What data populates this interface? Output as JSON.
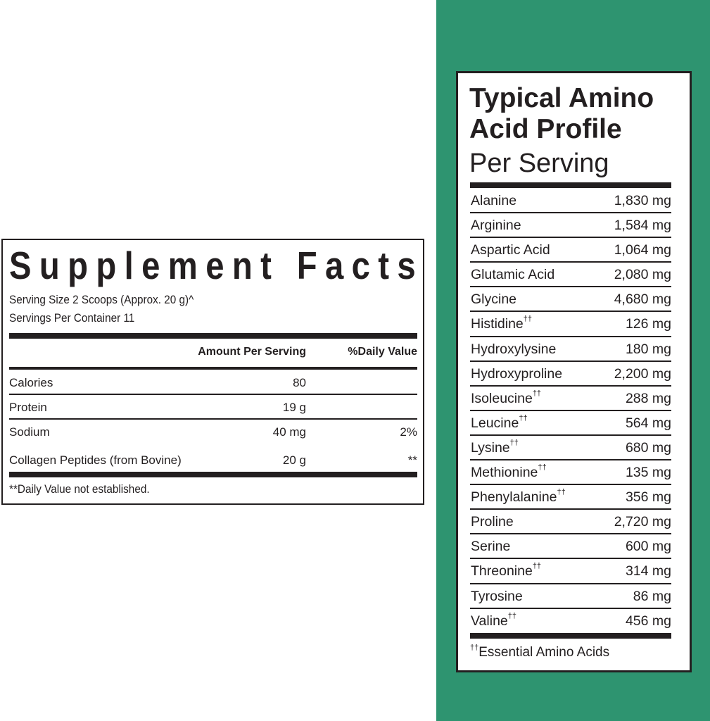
{
  "colors": {
    "background_accent": "#2e9470",
    "text": "#231f20"
  },
  "supplement_facts": {
    "title": "Supplement Facts",
    "serving_size": "Serving Size 2 Scoops (Approx. 20 g)^",
    "servings_per_container": "Servings Per Container 11",
    "headers": {
      "amount": "Amount Per Serving",
      "daily_value": "%Daily Value"
    },
    "rows": [
      {
        "name": "Calories",
        "amount": "80",
        "dv": ""
      },
      {
        "name": "Protein",
        "amount": "19 g",
        "dv": ""
      },
      {
        "name": "Sodium",
        "amount": "40 mg",
        "dv": "2%"
      },
      {
        "name": "Collagen Peptides (from Bovine)",
        "amount": "20 g",
        "dv": "**"
      }
    ],
    "footnote": "**Daily Value not established."
  },
  "amino_profile": {
    "title_line1": "Typical Amino",
    "title_line2": "Acid Profile",
    "subtitle": "Per Serving",
    "essential_mark": "††",
    "rows": [
      {
        "name": "Alanine",
        "value": "1,830 mg",
        "essential": false
      },
      {
        "name": "Arginine",
        "value": "1,584 mg",
        "essential": false
      },
      {
        "name": "Aspartic Acid",
        "value": "1,064 mg",
        "essential": false
      },
      {
        "name": "Glutamic Acid",
        "value": "2,080 mg",
        "essential": false
      },
      {
        "name": "Glycine",
        "value": "4,680 mg",
        "essential": false
      },
      {
        "name": "Histidine",
        "value": "126 mg",
        "essential": true
      },
      {
        "name": "Hydroxylysine",
        "value": "180 mg",
        "essential": false
      },
      {
        "name": "Hydroxyproline",
        "value": "2,200 mg",
        "essential": false
      },
      {
        "name": "Isoleucine",
        "value": "288 mg",
        "essential": true
      },
      {
        "name": "Leucine",
        "value": "564 mg",
        "essential": true
      },
      {
        "name": "Lysine",
        "value": "680 mg",
        "essential": true
      },
      {
        "name": "Methionine",
        "value": "135 mg",
        "essential": true
      },
      {
        "name": "Phenylalanine",
        "value": "356 mg",
        "essential": true
      },
      {
        "name": "Proline",
        "value": "2,720 mg",
        "essential": false
      },
      {
        "name": "Serine",
        "value": "600 mg",
        "essential": false
      },
      {
        "name": "Threonine",
        "value": "314 mg",
        "essential": true
      },
      {
        "name": "Tyrosine",
        "value": "86 mg",
        "essential": false
      },
      {
        "name": "Valine",
        "value": "456 mg",
        "essential": true
      }
    ],
    "footnote": "Essential Amino Acids"
  }
}
